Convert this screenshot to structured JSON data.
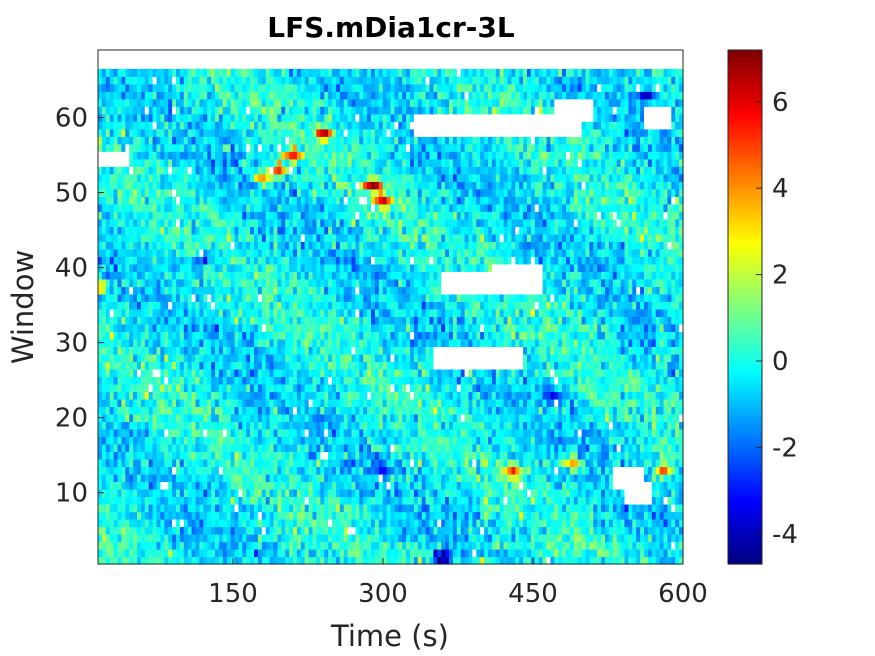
{
  "chart_data": {
    "type": "heatmap",
    "title": "LFS.mDia1cr-3L",
    "xlabel": "Time (s)",
    "ylabel": "Window",
    "xlim": [
      15,
      600
    ],
    "ylim": [
      0.5,
      69
    ],
    "x_ticks": [
      150,
      300,
      450,
      600
    ],
    "y_ticks": [
      10,
      20,
      30,
      40,
      50,
      60
    ],
    "n_windows": 66,
    "n_time_bins": 150,
    "colormap": "jet",
    "clim": [
      -4.7,
      7.2
    ],
    "colorbar_ticks": [
      -4,
      -2,
      0,
      2,
      4,
      6
    ],
    "nan_color": "#ffffff",
    "background_level": -0.3,
    "missing_regions": [
      {
        "t": [
          15,
          45
        ],
        "w": [
          53.5,
          55.5
        ]
      },
      {
        "t": [
          330,
          500
        ],
        "w": [
          57.5,
          60.5
        ]
      },
      {
        "t": [
          470,
          510
        ],
        "w": [
          59.5,
          62.5
        ]
      },
      {
        "t": [
          560,
          590
        ],
        "w": [
          59,
          61
        ]
      },
      {
        "t": [
          360,
          460
        ],
        "w": [
          37,
          39
        ]
      },
      {
        "t": [
          410,
          460
        ],
        "w": [
          38.5,
          40
        ]
      },
      {
        "t": [
          350,
          440
        ],
        "w": [
          27,
          29
        ]
      },
      {
        "t": [
          530,
          560
        ],
        "w": [
          11,
          13
        ]
      },
      {
        "t": [
          540,
          570
        ],
        "w": [
          9,
          11
        ]
      }
    ],
    "hot_spots": [
      {
        "t": 195,
        "w": 53,
        "v": 5.5
      },
      {
        "t": 210,
        "w": 55,
        "v": 6.0
      },
      {
        "t": 240,
        "w": 58,
        "v": 5.2
      },
      {
        "t": 290,
        "w": 51,
        "v": 6.3
      },
      {
        "t": 300,
        "w": 49,
        "v": 5.8
      },
      {
        "t": 180,
        "w": 52,
        "v": 4.6
      },
      {
        "t": 430,
        "w": 13,
        "v": 4.8
      },
      {
        "t": 490,
        "w": 14,
        "v": 4.2
      },
      {
        "t": 15,
        "w": 37.5,
        "v": 4.4
      },
      {
        "t": 580,
        "w": 13,
        "v": 4.0
      }
    ],
    "cold_spots": [
      {
        "t": 360,
        "w": 1.5,
        "v": -4.6
      },
      {
        "t": 565,
        "w": 63,
        "v": -3.8
      },
      {
        "t": 120,
        "w": 41,
        "v": -2.8
      },
      {
        "t": 300,
        "w": 13,
        "v": -3.0
      },
      {
        "t": 470,
        "w": 23,
        "v": -2.9
      }
    ]
  }
}
